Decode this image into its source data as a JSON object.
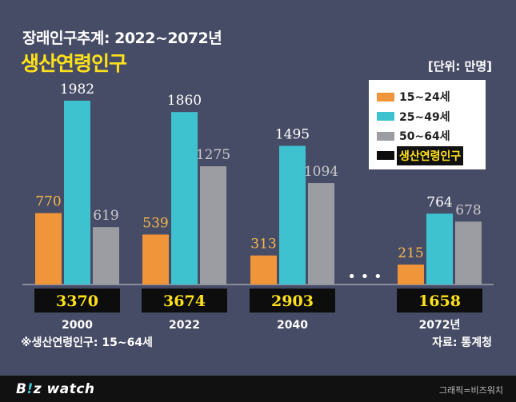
{
  "colors": {
    "background": "#474c66",
    "young": "#f0953a",
    "core": "#3ec2cf",
    "older": "#9c9da2",
    "total_box": "#0d0d0d",
    "total_text": "#ffe21a",
    "young_label": "#f6b84b",
    "core_label": "#ffffff",
    "older_label": "#c9c9cc"
  },
  "header": {
    "supertitle": "장래인구추계: 2022~2072년",
    "title": "생산연령인구",
    "unit": "[단위: 만명]"
  },
  "legend": {
    "items": [
      {
        "label": "15~24세",
        "color": "#f0953a"
      },
      {
        "label": "25~49세",
        "color": "#3ec2cf"
      },
      {
        "label": "50~64세",
        "color": "#9c9da2"
      },
      {
        "label": "생산연령인구",
        "color": "#0d0d0d"
      }
    ]
  },
  "chart_data": {
    "type": "bar",
    "title": "생산연령인구",
    "ylabel": "만명",
    "categories": [
      "2000",
      "2022",
      "2040",
      "2072년"
    ],
    "series": [
      {
        "name": "15~24세",
        "values": [
          770,
          539,
          313,
          215
        ]
      },
      {
        "name": "25~49세",
        "values": [
          1982,
          1860,
          1495,
          764
        ]
      },
      {
        "name": "50~64세",
        "values": [
          619,
          1275,
          1094,
          678
        ]
      }
    ],
    "totals_label": "생산연령인구",
    "totals": [
      3370,
      3674,
      2903,
      1658
    ],
    "gap_marker": "• • •",
    "ylim": [
      0,
      2400
    ]
  },
  "footer": {
    "footnote": "※생산연령인구: 15~64세",
    "source": "자료: 통계청",
    "logo_prefix": "B",
    "logo_accent": "!",
    "logo_suffix": "z watch",
    "credit": "그래픽=비즈워치"
  }
}
